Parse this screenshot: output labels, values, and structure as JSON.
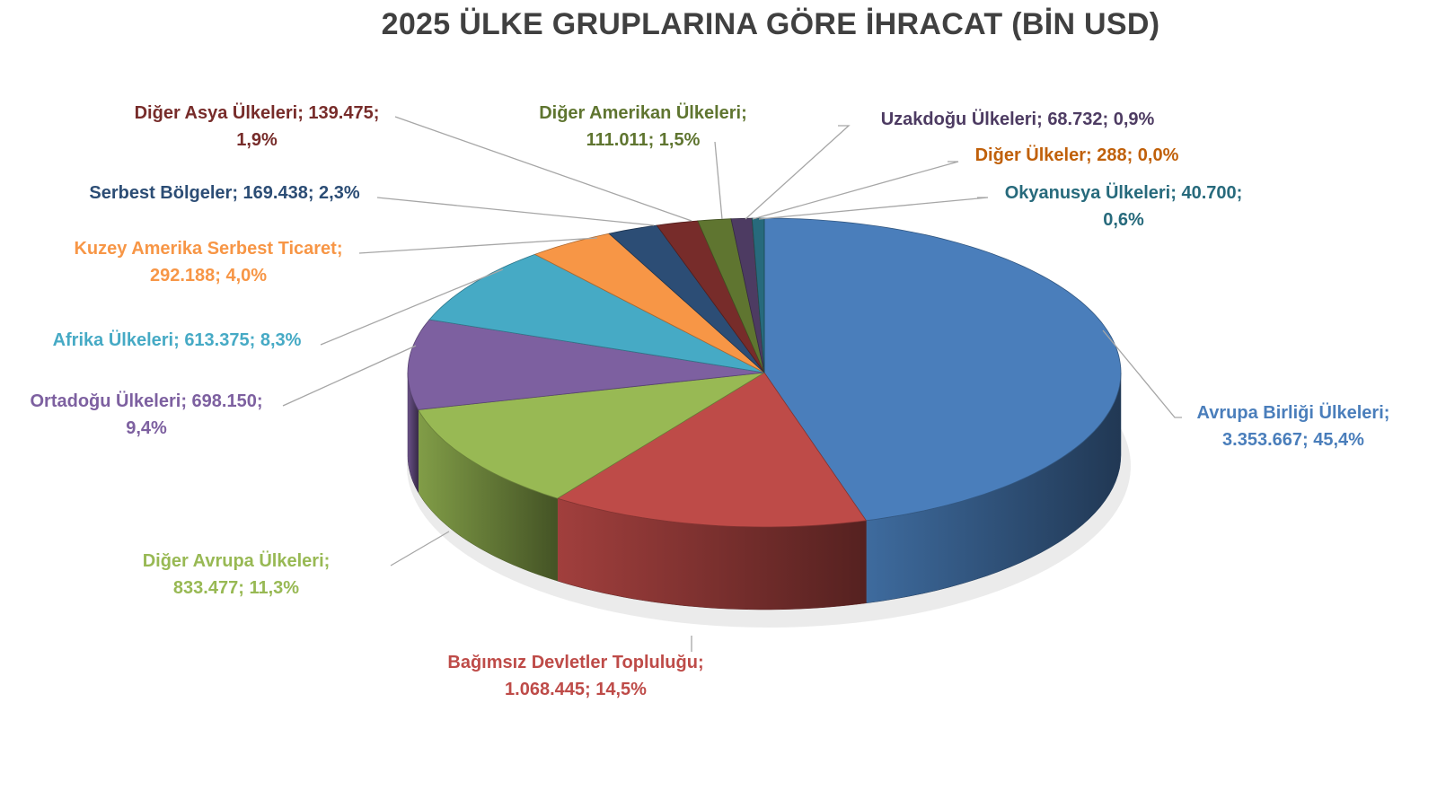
{
  "chart_data": {
    "type": "pie",
    "title": "2025 ÜLKE GRUPLARINA GÖRE İHRACAT (BİN USD)",
    "three_d": true,
    "slices": [
      {
        "name": "Avrupa Birliği Ülkeleri",
        "value": 3353667,
        "value_label": "3.353.667",
        "percent": "45,4%",
        "color": "#4a7ebb",
        "label_color": "#4a7ebb"
      },
      {
        "name": "Bağımsız Devletler Topluluğu",
        "value": 1068445,
        "value_label": "1.068.445",
        "percent": "14,5%",
        "color": "#be4b48",
        "label_color": "#be4b48"
      },
      {
        "name": "Diğer Avrupa Ülkeleri",
        "value": 833477,
        "value_label": "833.477",
        "percent": "11,3%",
        "color": "#98b954",
        "label_color": "#98b954"
      },
      {
        "name": "Ortadoğu Ülkeleri",
        "value": 698150,
        "value_label": "698.150",
        "percent": "9,4%",
        "color": "#7d60a0",
        "label_color": "#7d60a0"
      },
      {
        "name": "Afrika Ülkeleri",
        "value": 613375,
        "value_label": "613.375",
        "percent": "8,3%",
        "color": "#46aac5",
        "label_color": "#46aac5"
      },
      {
        "name": "Kuzey Amerika Serbest Ticaret",
        "value": 292188,
        "value_label": "292.188",
        "percent": "4,0%",
        "color": "#f79646",
        "label_color": "#f79646"
      },
      {
        "name": "Serbest Bölgeler",
        "value": 169438,
        "value_label": "169.438",
        "percent": "2,3%",
        "color": "#2c4d75",
        "label_color": "#2c4d75"
      },
      {
        "name": "Diğer Asya Ülkeleri",
        "value": 139475,
        "value_label": "139.475",
        "percent": "1,9%",
        "color": "#772c2a",
        "label_color": "#772c2a"
      },
      {
        "name": "Diğer Amerikan Ülkeleri",
        "value": 111011,
        "value_label": "111.011",
        "percent": "1,5%",
        "color": "#5f7530",
        "label_color": "#5f7530"
      },
      {
        "name": "Uzakdoğu Ülkeleri",
        "value": 68732,
        "value_label": "68.732",
        "percent": "0,9%",
        "color": "#4d3b62",
        "label_color": "#4d3b62"
      },
      {
        "name": "Diğer Ülkeler",
        "value": 288,
        "value_label": "288",
        "percent": "0,0%",
        "color": "#b65708",
        "label_color": "#c0600a"
      },
      {
        "name": "Okyanusya Ülkeleri",
        "value": 40700,
        "value_label": "40.700",
        "percent": "0,6%",
        "color": "#276a7c",
        "label_color": "#276a7c"
      }
    ]
  }
}
